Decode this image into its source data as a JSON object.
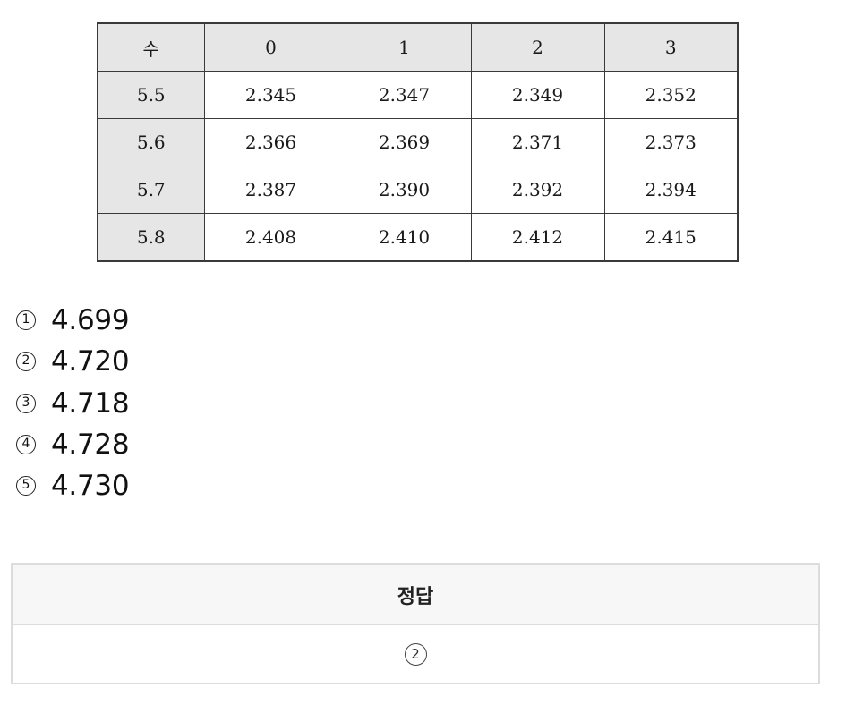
{
  "table": {
    "header": [
      "수",
      "0",
      "1",
      "2",
      "3"
    ],
    "rows": [
      {
        "label": "5.5",
        "values": [
          "2.345",
          "2.347",
          "2.349",
          "2.352"
        ]
      },
      {
        "label": "5.6",
        "values": [
          "2.366",
          "2.369",
          "2.371",
          "2.373"
        ]
      },
      {
        "label": "5.7",
        "values": [
          "2.387",
          "2.390",
          "2.392",
          "2.394"
        ]
      },
      {
        "label": "5.8",
        "values": [
          "2.408",
          "2.410",
          "2.412",
          "2.415"
        ]
      }
    ]
  },
  "choices": [
    {
      "marker": "1",
      "text": "4.699"
    },
    {
      "marker": "2",
      "text": "4.720"
    },
    {
      "marker": "3",
      "text": "4.718"
    },
    {
      "marker": "4",
      "text": "4.728"
    },
    {
      "marker": "5",
      "text": "4.730"
    }
  ],
  "answer": {
    "heading": "정답",
    "value": "2"
  }
}
